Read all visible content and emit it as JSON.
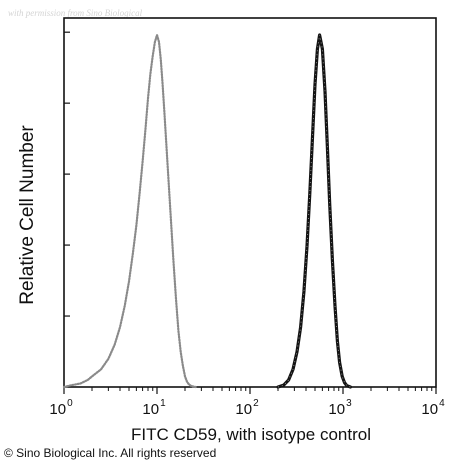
{
  "watermark": "with permission from Sino Biological",
  "copyright": "© Sino Biological Inc. All rights reserved",
  "colors": {
    "isotype": "#8a8a8a",
    "sample": "#141414",
    "axis": "#111111"
  },
  "chart_data": {
    "type": "line",
    "subtype": "flow-cytometry-histogram",
    "title": "",
    "xlabel": "FITC CD59, with isotype control",
    "ylabel": "Relative Cell Number",
    "xscale": "log",
    "xlim": [
      1,
      10000
    ],
    "ylim": [
      0,
      1
    ],
    "x_ticks": [
      {
        "base": "10",
        "exp": "0",
        "value": 1
      },
      {
        "base": "10",
        "exp": "1",
        "value": 10
      },
      {
        "base": "10",
        "exp": "2",
        "value": 100
      },
      {
        "base": "10",
        "exp": "3",
        "value": 1000
      },
      {
        "base": "10",
        "exp": "4",
        "value": 10000
      }
    ],
    "grid": false,
    "legend": "none",
    "series": [
      {
        "style": "dotted-gray",
        "x": [
          1.0,
          1.2,
          1.5,
          1.8,
          2.0,
          2.5,
          3.0,
          3.5,
          4.0,
          4.5,
          5.0,
          5.5,
          6.0,
          6.5,
          7.0,
          7.5,
          8.0,
          8.5,
          9.0,
          9.5,
          10.0,
          10.5,
          11.0,
          11.5,
          12.0,
          13.0,
          14.0,
          15.0,
          16.0,
          17.0,
          18.0,
          19.0,
          20.0,
          21.0,
          22.0,
          23.0,
          24.0,
          26.0
        ],
        "y": [
          0.0,
          0.005,
          0.01,
          0.02,
          0.03,
          0.05,
          0.08,
          0.12,
          0.17,
          0.23,
          0.3,
          0.38,
          0.46,
          0.55,
          0.64,
          0.73,
          0.82,
          0.89,
          0.94,
          0.98,
          1.0,
          0.98,
          0.93,
          0.86,
          0.78,
          0.63,
          0.49,
          0.36,
          0.25,
          0.16,
          0.1,
          0.06,
          0.03,
          0.015,
          0.008,
          0.004,
          0.002,
          0.0
        ]
      },
      {
        "style": "solid-black",
        "x": [
          200,
          230,
          260,
          290,
          320,
          350,
          380,
          410,
          440,
          470,
          500,
          530,
          560,
          600,
          640,
          680,
          720,
          770,
          820,
          870,
          920,
          980,
          1040,
          1100,
          1200
        ],
        "y": [
          0.0,
          0.005,
          0.02,
          0.05,
          0.1,
          0.17,
          0.27,
          0.4,
          0.55,
          0.71,
          0.86,
          0.96,
          1.0,
          0.96,
          0.84,
          0.68,
          0.52,
          0.36,
          0.23,
          0.13,
          0.07,
          0.03,
          0.012,
          0.004,
          0.0
        ]
      }
    ]
  }
}
